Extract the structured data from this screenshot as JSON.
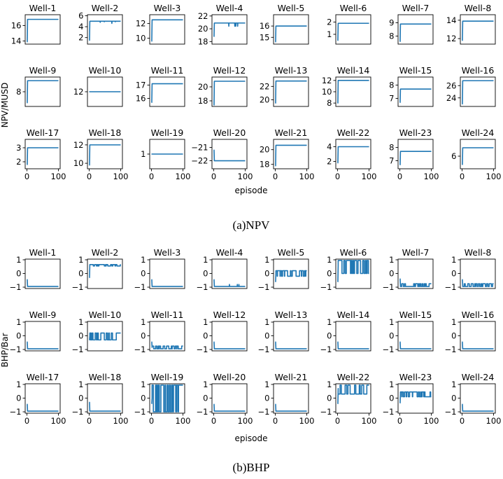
{
  "chart_data": [
    {
      "type": "line",
      "caption": "(a)NPV",
      "ylabel": "NPV/MUSD",
      "xlabel": "episode",
      "xlim": [
        0,
        100
      ],
      "xticks": [
        0,
        100
      ],
      "series_color": "#1f77b4",
      "panels": [
        {
          "title": "Well-1",
          "ylim": [
            13.6,
            17.4
          ],
          "yticks": [
            14,
            16
          ],
          "values": [
            13.9,
            16.8
          ],
          "level": 16.8
        },
        {
          "title": "Well-2",
          "ylim": [
            0.8,
            6.2
          ],
          "yticks": [
            2,
            4,
            6
          ],
          "values": [
            1.5,
            5.0
          ],
          "level": 5.0,
          "dips": [
            [
              35,
              4.8
            ],
            [
              48,
              4.9
            ],
            [
              72,
              4.6
            ],
            [
              83,
              4.9
            ]
          ]
        },
        {
          "title": "Well-3",
          "ylim": [
            9.2,
            13.2
          ],
          "yticks": [
            10,
            12
          ],
          "values": [
            9.6,
            12.5
          ],
          "level": 12.5
        },
        {
          "title": "Well-4",
          "ylim": [
            17.6,
            22.2
          ],
          "yticks": [
            18,
            20,
            22
          ],
          "values": [
            18.8,
            20.9
          ],
          "level": 20.9,
          "dips": [
            [
              48,
              20.4
            ],
            [
              67,
              20.4
            ],
            [
              70,
              20.4
            ],
            [
              76,
              20.4
            ]
          ]
        },
        {
          "title": "Well-5",
          "ylim": [
            14.4,
            17.0
          ],
          "yticks": [
            15,
            16
          ],
          "values": [
            14.6,
            16.0
          ],
          "level": 16.0
        },
        {
          "title": "Well-6",
          "ylim": [
            0.2,
            2.6
          ],
          "yticks": [
            1,
            2
          ],
          "values": [
            0.5,
            1.9
          ],
          "level": 1.9
        },
        {
          "title": "Well-7",
          "ylim": [
            7.4,
            9.6
          ],
          "yticks": [
            8,
            9
          ],
          "values": [
            7.6,
            8.9
          ],
          "level": 8.9
        },
        {
          "title": "Well-8",
          "ylim": [
            11.4,
            14.6
          ],
          "yticks": [
            12,
            14
          ],
          "values": [
            11.8,
            13.9
          ],
          "level": 13.9
        },
        {
          "title": "Well-9",
          "ylim": [
            6.8,
            9.2
          ],
          "yticks": [
            8
          ],
          "values": [
            7.1,
            8.9
          ],
          "level": 8.9
        },
        {
          "title": "Well-10",
          "ylim": [
            10.8,
            13.2
          ],
          "yticks": [
            12
          ],
          "values": [
            12.0,
            12.0
          ],
          "level": 12.0
        },
        {
          "title": "Well-11",
          "ylim": [
            15.4,
            17.6
          ],
          "yticks": [
            16,
            17
          ],
          "values": [
            15.7,
            17.1
          ],
          "level": 17.1
        },
        {
          "title": "Well-12",
          "ylim": [
            17.2,
            21.4
          ],
          "yticks": [
            18,
            20
          ],
          "values": [
            17.4,
            20.8
          ],
          "level": 20.8
        },
        {
          "title": "Well-13",
          "ylim": [
            19.0,
            23.4
          ],
          "yticks": [
            20,
            22
          ],
          "values": [
            19.5,
            22.8
          ],
          "level": 22.8
        },
        {
          "title": "Well-14",
          "ylim": [
            7.4,
            12.6
          ],
          "yticks": [
            8,
            10,
            12
          ],
          "values": [
            8.0,
            12.0
          ],
          "level": 12.0
        },
        {
          "title": "Well-15",
          "ylim": [
            6.4,
            8.6
          ],
          "yticks": [
            7,
            8
          ],
          "values": [
            6.7,
            7.7
          ],
          "level": 7.7
        },
        {
          "title": "Well-16",
          "ylim": [
            22.6,
            27.4
          ],
          "yticks": [
            24,
            26
          ],
          "values": [
            23.0,
            26.8
          ],
          "level": 26.8
        },
        {
          "title": "Well-17",
          "ylim": [
            1.5,
            3.6
          ],
          "yticks": [
            2,
            3
          ],
          "values": [
            1.8,
            3.0
          ],
          "level": 3.0
        },
        {
          "title": "Well-18",
          "ylim": [
            9.4,
            12.6
          ],
          "yticks": [
            10,
            12
          ],
          "values": [
            9.8,
            12.0
          ],
          "level": 12.0
        },
        {
          "title": "Well-19",
          "ylim": [
            0.4,
            1.6
          ],
          "yticks": [
            1
          ],
          "values": [
            1.0,
            1.0
          ],
          "level": 1.0
        },
        {
          "title": "Well-20",
          "ylim": [
            -22.6,
            -20.4
          ],
          "yticks": [
            -21,
            -22
          ],
          "values": [
            -21.2,
            -22.0
          ],
          "level": -22.0
        },
        {
          "title": "Well-21",
          "ylim": [
            17.4,
            21.4
          ],
          "yticks": [
            18,
            20
          ],
          "values": [
            17.8,
            20.6
          ],
          "level": 20.6
        },
        {
          "title": "Well-22",
          "ylim": [
            1.0,
            5.0
          ],
          "yticks": [
            2,
            4
          ],
          "values": [
            1.8,
            4.0
          ],
          "level": 4.0
        },
        {
          "title": "Well-23",
          "ylim": [
            6.4,
            8.6
          ],
          "yticks": [
            7,
            8
          ],
          "values": [
            6.7,
            7.7
          ],
          "level": 7.7
        },
        {
          "title": "Well-24",
          "ylim": [
            4.8,
            7.6
          ],
          "yticks": [
            6
          ],
          "values": [
            5.2,
            6.8
          ],
          "level": 6.8
        }
      ]
    },
    {
      "type": "line",
      "caption": "(b)BHP",
      "ylabel": "BHP/Bar",
      "xlabel": "episode",
      "xlim": [
        0,
        100
      ],
      "xticks": [
        0,
        100
      ],
      "series_color": "#1f77b4",
      "panels": [
        {
          "title": "Well-1",
          "ylim": [
            -1.1,
            1.05
          ],
          "yticks": [
            1,
            0,
            -1
          ],
          "values": [
            -0.45,
            -0.95
          ],
          "level": -0.95
        },
        {
          "title": "Well-2",
          "ylim": [
            -1.1,
            1.05
          ],
          "yticks": [
            1,
            0,
            -1
          ],
          "values": [
            -0.3,
            0.6
          ],
          "level": 0.6,
          "osc": [
            0.55,
            0.65
          ]
        },
        {
          "title": "Well-3",
          "ylim": [
            -1.1,
            1.05
          ],
          "yticks": [
            1,
            0,
            -1
          ],
          "values": [
            -0.45,
            -0.95
          ],
          "level": -0.95
        },
        {
          "title": "Well-4",
          "ylim": [
            -1.1,
            1.05
          ],
          "yticks": [
            1,
            0,
            -1
          ],
          "values": [
            -0.45,
            -0.95
          ],
          "level": -0.95,
          "dips": [
            [
              50,
              -0.8
            ],
            [
              75,
              -0.8
            ],
            [
              80,
              -0.8
            ]
          ]
        },
        {
          "title": "Well-5",
          "ylim": [
            -1.1,
            1.05
          ],
          "yticks": [
            1,
            0,
            -1
          ],
          "values": [
            -0.6,
            0.0
          ],
          "level": 0.0,
          "osc": [
            -0.2,
            0.2
          ]
        },
        {
          "title": "Well-6",
          "ylim": [
            -1.1,
            1.05
          ],
          "yticks": [
            1,
            0,
            -1
          ],
          "values": [
            -0.6,
            0.6
          ],
          "level": 0.6,
          "osc": [
            0.0,
            0.95
          ]
        },
        {
          "title": "Well-7",
          "ylim": [
            -1.1,
            1.05
          ],
          "yticks": [
            1,
            0,
            -1
          ],
          "values": [
            -0.4,
            -0.85
          ],
          "level": -0.85,
          "osc": [
            -0.95,
            -0.75
          ]
        },
        {
          "title": "Well-8",
          "ylim": [
            -1.1,
            1.05
          ],
          "yticks": [
            1,
            0,
            -1
          ],
          "values": [
            -0.45,
            -0.85
          ],
          "level": -0.85,
          "osc": [
            -0.95,
            -0.75
          ]
        },
        {
          "title": "Well-9",
          "ylim": [
            -1.1,
            1.05
          ],
          "yticks": [
            1,
            0,
            -1
          ],
          "values": [
            -0.45,
            -0.95
          ],
          "level": -0.95
        },
        {
          "title": "Well-10",
          "ylim": [
            -1.1,
            1.05
          ],
          "yticks": [
            1,
            0,
            -1
          ],
          "values": [
            -0.3,
            0.0
          ],
          "level": 0.0,
          "osc": [
            -0.3,
            0.2
          ]
        },
        {
          "title": "Well-11",
          "ylim": [
            -1.1,
            1.05
          ],
          "yticks": [
            1,
            0,
            -1
          ],
          "values": [
            -0.45,
            -0.85
          ],
          "level": -0.85,
          "osc": [
            -0.95,
            -0.75
          ]
        },
        {
          "title": "Well-12",
          "ylim": [
            -1.1,
            1.05
          ],
          "yticks": [
            1,
            0,
            -1
          ],
          "values": [
            -0.45,
            -0.95
          ],
          "level": -0.95
        },
        {
          "title": "Well-13",
          "ylim": [
            -1.1,
            1.05
          ],
          "yticks": [
            1,
            0,
            -1
          ],
          "values": [
            -0.45,
            -0.95
          ],
          "level": -0.95
        },
        {
          "title": "Well-14",
          "ylim": [
            -1.1,
            1.05
          ],
          "yticks": [
            1,
            0,
            -1
          ],
          "values": [
            -0.45,
            -0.95
          ],
          "level": -0.95
        },
        {
          "title": "Well-15",
          "ylim": [
            -1.1,
            1.05
          ],
          "yticks": [
            1,
            0,
            -1
          ],
          "values": [
            -0.45,
            -0.95
          ],
          "level": -0.95
        },
        {
          "title": "Well-16",
          "ylim": [
            -1.1,
            1.05
          ],
          "yticks": [
            1,
            0,
            -1
          ],
          "values": [
            -0.45,
            -0.95
          ],
          "level": -0.95
        },
        {
          "title": "Well-17",
          "ylim": [
            -1.1,
            1.05
          ],
          "yticks": [
            1,
            0,
            -1
          ],
          "values": [
            -0.45,
            -0.95
          ],
          "level": -0.95
        },
        {
          "title": "Well-18",
          "ylim": [
            -1.1,
            1.05
          ],
          "yticks": [
            1,
            0,
            -1
          ],
          "values": [
            -0.3,
            -0.95
          ],
          "level": -0.95
        },
        {
          "title": "Well-19",
          "ylim": [
            -1.1,
            1.05
          ],
          "yticks": [
            1,
            0,
            -1
          ],
          "values": [
            -0.4,
            0.0
          ],
          "level": 0.0,
          "osc": [
            -1.0,
            0.95
          ]
        },
        {
          "title": "Well-20",
          "ylim": [
            -1.1,
            1.05
          ],
          "yticks": [
            1,
            0,
            -1
          ],
          "values": [
            -0.45,
            -0.95
          ],
          "level": -0.95
        },
        {
          "title": "Well-21",
          "ylim": [
            -1.1,
            1.05
          ],
          "yticks": [
            1,
            0,
            -1
          ],
          "values": [
            -0.45,
            -0.95
          ],
          "level": -0.95
        },
        {
          "title": "Well-22",
          "ylim": [
            -1.1,
            1.05
          ],
          "yticks": [
            1,
            0,
            -1
          ],
          "values": [
            -0.4,
            0.7
          ],
          "level": 0.7,
          "osc": [
            0.3,
            0.95
          ]
        },
        {
          "title": "Well-23",
          "ylim": [
            -1.1,
            1.05
          ],
          "yticks": [
            1,
            0,
            -1
          ],
          "values": [
            -0.35,
            0.3
          ],
          "level": 0.3,
          "osc": [
            0.1,
            0.45
          ]
        },
        {
          "title": "Well-24",
          "ylim": [
            -1.1,
            1.05
          ],
          "yticks": [
            1,
            0,
            -1
          ],
          "values": [
            -0.45,
            -0.95
          ],
          "level": -0.95
        }
      ]
    }
  ]
}
